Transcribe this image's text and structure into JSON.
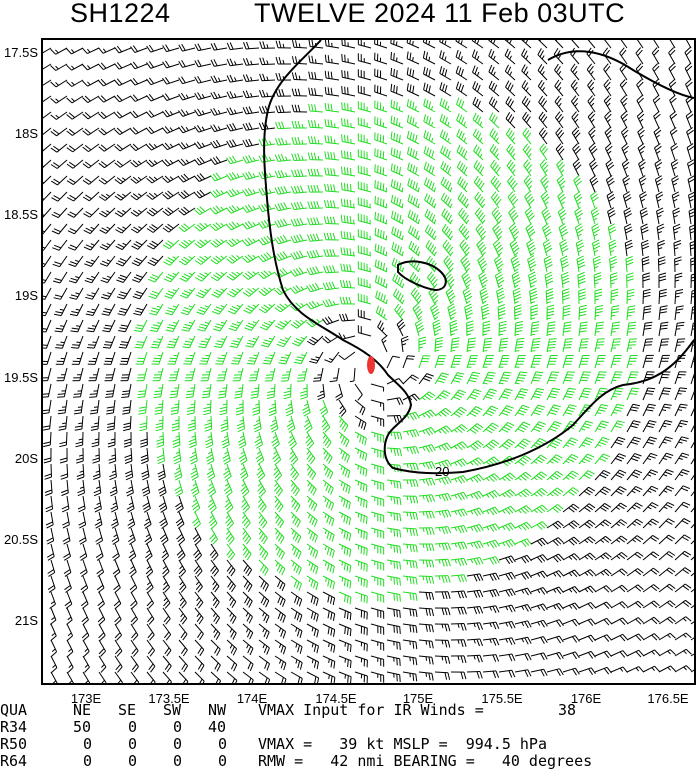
{
  "header": {
    "storm_id": "SH1224",
    "title": "TWELVE 2024 11 Feb 03UTC"
  },
  "map": {
    "lat_labels": [
      "17.5S",
      "18S",
      "18.5S",
      "19S",
      "19.5S",
      "20S",
      "20.5S",
      "21S"
    ],
    "lon_labels": [
      "173E",
      "173.5E",
      "174E",
      "174.5E",
      "175E",
      "175.5E",
      "176E",
      "176.5E"
    ],
    "contour_label": "20",
    "colors": {
      "below_34kt": "#000000",
      "34_to_50kt": "#22dd22",
      "50_to_64kt": "#f0a030",
      "center_marker": "#ee3333"
    }
  },
  "stats": {
    "quadrant_header": [
      "QUA",
      "NE",
      "SE",
      "SW",
      "NW"
    ],
    "rows": [
      {
        "label": "R34",
        "values": [
          "50",
          "0",
          "0",
          "40"
        ]
      },
      {
        "label": "R50",
        "values": [
          "0",
          "0",
          "0",
          "0"
        ]
      },
      {
        "label": "R64",
        "values": [
          "0",
          "0",
          "0",
          "0"
        ]
      }
    ],
    "vmax_input_label": "VMAX Input for IR Winds =",
    "vmax_input_value": "38",
    "vmax_line": "VMAX =   39 kt MSLP =  994.5 hPa",
    "rmw_line": "RMW =   42 nmi BEARING =   40 degrees"
  }
}
